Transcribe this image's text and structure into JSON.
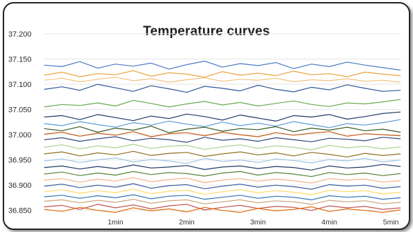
{
  "chart_data": {
    "type": "line",
    "title": "Temperature curves",
    "xlabel": "",
    "ylabel": "",
    "x_ticks": [
      "1min",
      "2min",
      "3min",
      "4min",
      "5min"
    ],
    "y_ticks": [
      "37.200",
      "37.150",
      "37.100",
      "37.050",
      "37.000",
      "36.950",
      "36.900",
      "36.850"
    ],
    "ylim": [
      36.84,
      37.2
    ],
    "xlim": [
      0,
      5
    ],
    "grid": true,
    "legend": "none",
    "x": [
      0,
      0.25,
      0.5,
      0.75,
      1,
      1.25,
      1.5,
      1.75,
      2,
      2.25,
      2.5,
      2.75,
      3,
      3.25,
      3.5,
      3.75,
      4,
      4.25,
      4.5,
      4.75,
      5
    ],
    "series": [
      {
        "color": "#4a78c2",
        "values": [
          37.138,
          37.135,
          37.145,
          37.132,
          37.14,
          37.136,
          37.142,
          37.13,
          37.139,
          37.146,
          37.134,
          37.141,
          37.137,
          37.143,
          37.131,
          37.14,
          37.135,
          37.144,
          37.138,
          37.133,
          37.128
        ]
      },
      {
        "color": "#e8a23c",
        "values": [
          37.118,
          37.124,
          37.115,
          37.121,
          37.119,
          37.127,
          37.116,
          37.123,
          37.12,
          37.114,
          37.125,
          37.118,
          37.122,
          37.117,
          37.126,
          37.119,
          37.121,
          37.115,
          37.124,
          37.12,
          37.117
        ]
      },
      {
        "color": "#f1c27d",
        "values": [
          37.108,
          37.112,
          37.105,
          37.11,
          37.114,
          37.107,
          37.111,
          37.104,
          37.109,
          37.113,
          37.106,
          37.11,
          37.108,
          37.112,
          37.105,
          37.109,
          37.107,
          37.111,
          37.106,
          37.108,
          37.104
        ]
      },
      {
        "color": "#2f5597",
        "values": [
          37.09,
          37.095,
          37.088,
          37.1,
          37.093,
          37.086,
          37.097,
          37.091,
          37.084,
          37.096,
          37.092,
          37.087,
          37.098,
          37.09,
          37.085,
          37.094,
          37.089,
          37.099,
          37.092,
          37.086,
          37.088
        ]
      },
      {
        "color": "#6aa84f",
        "values": [
          37.055,
          37.06,
          37.058,
          37.063,
          37.057,
          37.068,
          37.062,
          37.055,
          37.061,
          37.066,
          37.059,
          37.064,
          37.057,
          37.062,
          37.067,
          37.06,
          37.056,
          37.063,
          37.061,
          37.065,
          37.07
        ]
      },
      {
        "color": "#1f3864",
        "values": [
          37.035,
          37.038,
          37.03,
          37.04,
          37.034,
          37.028,
          37.037,
          37.032,
          37.041,
          37.036,
          37.029,
          37.039,
          37.033,
          37.027,
          37.038,
          37.035,
          37.04,
          37.031,
          37.036,
          37.042,
          37.045
        ]
      },
      {
        "color": "#5b9bd5",
        "values": [
          37.022,
          37.018,
          37.026,
          37.02,
          37.015,
          37.024,
          37.019,
          37.027,
          37.021,
          37.016,
          37.025,
          37.018,
          37.023,
          37.017,
          37.026,
          37.02,
          37.014,
          37.022,
          37.019,
          37.024,
          37.03
        ]
      },
      {
        "color": "#375623",
        "values": [
          37.012,
          37.008,
          37.016,
          37.005,
          37.013,
          37.009,
          37.017,
          37.004,
          37.011,
          37.015,
          37.007,
          37.012,
          37.01,
          37.016,
          37.006,
          37.013,
          37.009,
          37.015,
          37.008,
          37.011,
          37.005
        ]
      },
      {
        "color": "#c55a11",
        "values": [
          37.001,
          37.005,
          36.997,
          37.003,
          36.999,
          37.006,
          36.996,
          37.002,
          37.004,
          36.998,
          37.005,
          37.0,
          36.996,
          37.004,
          36.999,
          37.003,
          37.006,
          36.997,
          37.002,
          37.0,
          36.998
        ]
      },
      {
        "color": "#2e4a7a",
        "values": [
          36.99,
          36.994,
          36.987,
          36.992,
          36.996,
          36.988,
          36.993,
          36.99,
          36.985,
          36.995,
          36.989,
          36.992,
          36.987,
          36.994,
          36.99,
          36.986,
          36.993,
          36.991,
          36.988,
          36.995,
          36.992
        ]
      },
      {
        "color": "#a9d18e",
        "values": [
          36.975,
          36.98,
          36.972,
          36.978,
          36.974,
          36.981,
          36.973,
          36.977,
          36.979,
          36.971,
          36.976,
          36.98,
          36.973,
          36.978,
          36.975,
          36.97,
          36.979,
          36.974,
          36.977,
          36.972,
          36.976
        ]
      },
      {
        "color": "#8f6f1e",
        "values": [
          36.962,
          36.966,
          36.958,
          36.964,
          36.96,
          36.967,
          36.959,
          36.963,
          36.965,
          36.957,
          36.962,
          36.966,
          36.96,
          36.964,
          36.958,
          36.965,
          36.961,
          36.956,
          36.963,
          36.959,
          36.962
        ]
      },
      {
        "color": "#9dc3e6",
        "values": [
          36.948,
          36.952,
          36.945,
          36.95,
          36.954,
          36.946,
          36.951,
          36.948,
          36.943,
          36.953,
          36.947,
          36.95,
          36.945,
          36.952,
          36.949,
          36.944,
          36.951,
          36.948,
          36.953,
          36.946,
          36.95
        ]
      },
      {
        "color": "#203864",
        "values": [
          36.935,
          36.938,
          36.932,
          36.937,
          36.933,
          36.94,
          36.934,
          36.936,
          36.939,
          36.931,
          36.936,
          36.938,
          36.933,
          36.937,
          36.935,
          36.93,
          36.938,
          36.934,
          36.936,
          36.941,
          36.937
        ]
      },
      {
        "color": "#548235",
        "values": [
          36.922,
          36.926,
          36.919,
          36.924,
          36.92,
          36.927,
          36.921,
          36.925,
          36.923,
          36.918,
          36.924,
          36.927,
          36.92,
          36.925,
          36.922,
          36.917,
          36.925,
          36.921,
          36.924,
          36.919,
          36.923
        ]
      },
      {
        "color": "#f4b183",
        "values": [
          36.91,
          36.913,
          36.906,
          36.912,
          36.908,
          36.915,
          36.907,
          36.911,
          36.914,
          36.905,
          36.91,
          36.913,
          36.908,
          36.912,
          36.909,
          36.904,
          36.913,
          36.91,
          36.912,
          36.906,
          36.909
        ]
      },
      {
        "color": "#3a5f9c",
        "values": [
          36.898,
          36.902,
          36.895,
          36.9,
          36.896,
          36.903,
          36.894,
          36.899,
          36.901,
          36.893,
          36.898,
          36.902,
          36.896,
          36.9,
          36.897,
          36.892,
          36.901,
          36.898,
          36.9,
          36.894,
          36.897
        ]
      },
      {
        "color": "#ffd966",
        "values": [
          36.887,
          36.891,
          36.884,
          36.889,
          36.885,
          36.892,
          36.883,
          36.888,
          36.89,
          36.882,
          36.887,
          36.891,
          36.885,
          36.889,
          36.886,
          36.881,
          36.89,
          36.887,
          36.889,
          36.883,
          36.886
        ]
      },
      {
        "color": "#2f75b5",
        "values": [
          36.877,
          36.88,
          36.874,
          36.879,
          36.875,
          36.881,
          36.873,
          36.878,
          36.88,
          36.872,
          36.876,
          36.88,
          36.874,
          36.878,
          36.876,
          36.871,
          36.879,
          36.876,
          36.878,
          36.872,
          36.875
        ]
      },
      {
        "color": "#c9a47a",
        "values": [
          36.868,
          36.871,
          36.865,
          36.87,
          36.866,
          36.872,
          36.864,
          36.869,
          36.871,
          36.863,
          36.867,
          36.871,
          36.865,
          36.869,
          36.867,
          36.862,
          36.87,
          36.867,
          36.869,
          36.863,
          36.866
        ]
      },
      {
        "color": "#c0504d",
        "values": [
          36.857,
          36.86,
          36.852,
          36.862,
          36.855,
          36.861,
          36.853,
          36.859,
          36.862,
          36.851,
          36.856,
          36.86,
          36.854,
          36.858,
          36.856,
          36.85,
          36.859,
          36.855,
          36.858,
          36.852,
          36.855
        ]
      },
      {
        "color": "#e26b0a",
        "values": [
          36.852,
          36.848,
          36.856,
          36.85,
          36.846,
          36.855,
          36.849,
          36.853,
          36.847,
          36.856,
          36.85,
          36.846,
          36.854,
          36.849,
          36.852,
          36.857,
          36.848,
          36.853,
          36.85,
          36.846,
          36.851
        ]
      }
    ]
  }
}
